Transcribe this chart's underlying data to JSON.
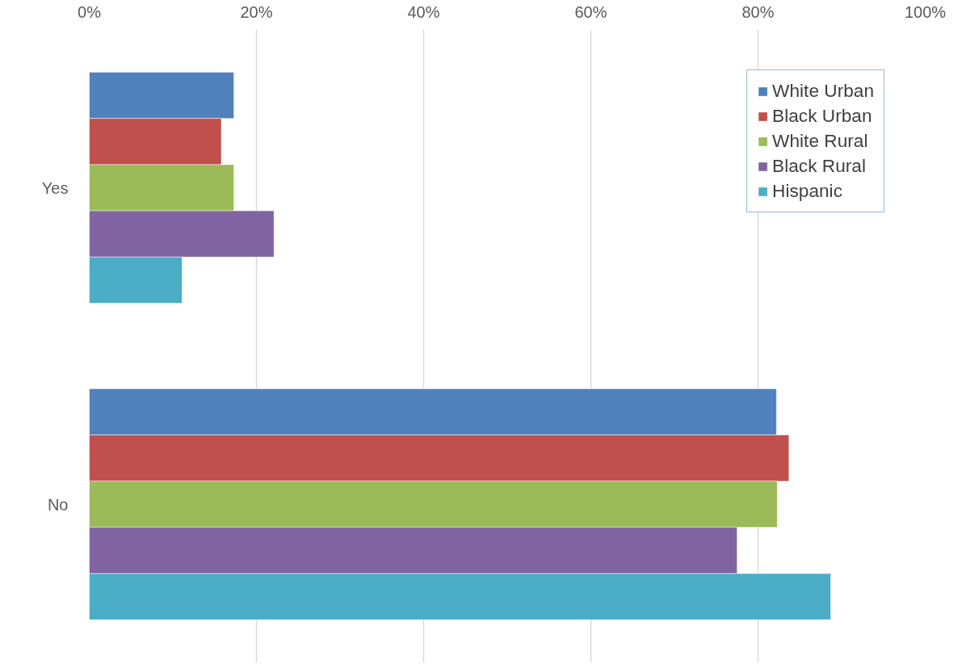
{
  "chart_data": {
    "type": "bar",
    "orientation": "horizontal",
    "categories": [
      "Yes",
      "No"
    ],
    "series": [
      {
        "name": "White Urban",
        "color": "#4f81bd",
        "values": [
          17.3,
          82.2
        ]
      },
      {
        "name": "Black Urban",
        "color": "#c0504d",
        "values": [
          15.8,
          83.7
        ]
      },
      {
        "name": "White Rural",
        "color": "#9bbb59",
        "values": [
          17.3,
          82.3
        ]
      },
      {
        "name": "Black Rural",
        "color": "#8064a2",
        "values": [
          22.1,
          77.5
        ]
      },
      {
        "name": "Hispanic",
        "color": "#4bacc6",
        "values": [
          11.1,
          88.7
        ]
      }
    ],
    "xlim": [
      0,
      100
    ],
    "xticks": [
      {
        "value": 0,
        "label": "0%"
      },
      {
        "value": 20,
        "label": "20%"
      },
      {
        "value": 40,
        "label": "40%"
      },
      {
        "value": 60,
        "label": "60%"
      },
      {
        "value": 80,
        "label": "80%"
      },
      {
        "value": 100,
        "label": "100%"
      }
    ],
    "grid": "x",
    "legend": "top right"
  }
}
